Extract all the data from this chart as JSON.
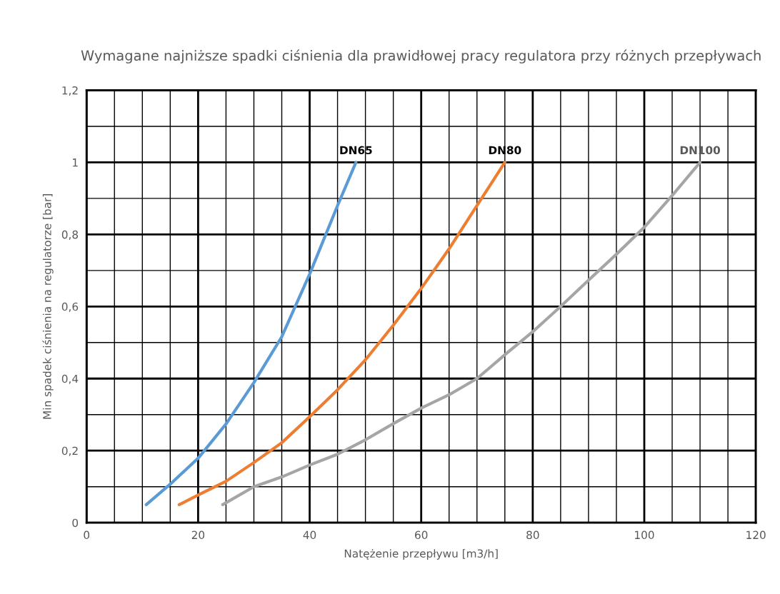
{
  "chart_data": {
    "type": "line",
    "title": "Wymagane najniższe spadki ciśnienia dla prawidłowej pracy regulatora przy różnych przepływach",
    "xlabel": "Natężenie przepływu [m3/h]",
    "ylabel": "Min spadek ciśnienia na regulatorze [bar]",
    "series": [
      {
        "name": "DN65",
        "color": "#5b9bd5",
        "x": [
          10.7,
          15,
          20,
          25,
          30,
          35,
          40,
          45,
          48.3
        ],
        "values": [
          0.05,
          0.107,
          0.179,
          0.274,
          0.389,
          0.516,
          0.69,
          0.88,
          1.0
        ]
      },
      {
        "name": "DN80",
        "color": "#ed7d31",
        "x": [
          16.6,
          20,
          25,
          30,
          35,
          40,
          45,
          50,
          55,
          60,
          65,
          70,
          75
        ],
        "values": [
          0.05,
          0.077,
          0.115,
          0.167,
          0.222,
          0.294,
          0.369,
          0.452,
          0.548,
          0.65,
          0.76,
          0.88,
          1.0
        ]
      },
      {
        "name": "DN100",
        "color": "#a5a5a5",
        "x": [
          24.4,
          30,
          35,
          40,
          45,
          50,
          55,
          60,
          65,
          70,
          75,
          80,
          85,
          90,
          95,
          100,
          105,
          110
        ],
        "values": [
          0.05,
          0.1,
          0.127,
          0.16,
          0.19,
          0.23,
          0.275,
          0.318,
          0.355,
          0.4,
          0.466,
          0.53,
          0.6,
          0.673,
          0.745,
          0.82,
          0.908,
          1.0
        ]
      }
    ],
    "xlim": [
      0,
      120
    ],
    "xticks": [
      0,
      {
        "value": 5,
        "label": null
      },
      {
        "value": 10,
        "label": null
      },
      {
        "value": 15,
        "label": null
      },
      20,
      {
        "value": 25,
        "label": null
      },
      {
        "value": 30,
        "label": null
      },
      {
        "value": 35,
        "label": null
      },
      40,
      {
        "value": 45,
        "label": null
      },
      {
        "value": 50,
        "label": null
      },
      {
        "value": 55,
        "label": null
      },
      60,
      {
        "value": 65,
        "label": null
      },
      {
        "value": 70,
        "label": null
      },
      {
        "value": 75,
        "label": null
      },
      80,
      {
        "value": 85,
        "label": null
      },
      {
        "value": 90,
        "label": null
      },
      {
        "value": 95,
        "label": null
      },
      100,
      {
        "value": 105,
        "label": null
      },
      {
        "value": 110,
        "label": null
      },
      {
        "value": 115,
        "label": null
      },
      120
    ],
    "ylim": [
      0,
      1.2
    ],
    "yticks": [
      0,
      {
        "value": 0.1,
        "label": null
      },
      {
        "value": 0.2,
        "label": "0,2"
      },
      {
        "value": 0.3,
        "label": null
      },
      {
        "value": 0.4,
        "label": "0,4"
      },
      {
        "value": 0.5,
        "label": null
      },
      {
        "value": 0.6,
        "label": "0,6"
      },
      {
        "value": 0.7,
        "label": null
      },
      {
        "value": 0.8,
        "label": "0,8"
      },
      {
        "value": 0.9,
        "label": null
      },
      1,
      {
        "value": 1.1,
        "label": null
      },
      {
        "value": 1.2,
        "label": "1,2"
      }
    ],
    "grid": true,
    "legend": false,
    "marker": "none",
    "line_style": "solid"
  }
}
